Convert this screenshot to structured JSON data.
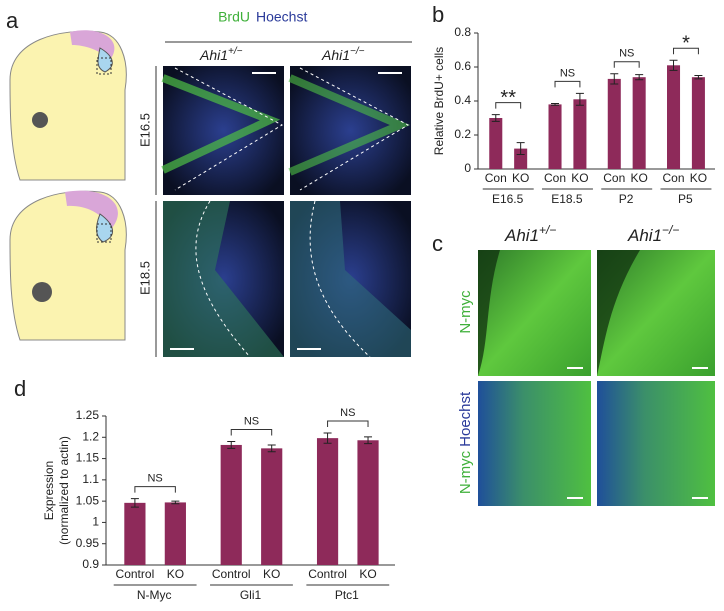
{
  "panels": {
    "a": {
      "letter": "a",
      "stain_1": "BrdU",
      "stain_2": "Hoechst",
      "gene": "Ahi1",
      "col_1": "+/−",
      "col_2": "−/−",
      "row_1": "E16.5",
      "row_2": "E18.5"
    },
    "c": {
      "letter": "c",
      "gene": "Ahi1",
      "col_1": "+/−",
      "col_2": "−/−",
      "row_1": "N-myc",
      "row_2_a": "N-myc",
      "row_2_b": "Hoechst"
    },
    "b": {
      "letter": "b"
    },
    "d": {
      "letter": "d"
    }
  },
  "chart_data": [
    {
      "type": "bar",
      "ylabel": "Relative BrdU+ cells",
      "categories": [
        "Con",
        "KO",
        "Con",
        "KO",
        "Con",
        "KO",
        "Con",
        "KO"
      ],
      "groups": [
        "E16.5",
        "E18.5",
        "P2",
        "P5"
      ],
      "significance": [
        "**",
        "NS",
        "NS",
        "*"
      ],
      "values": [
        0.3,
        0.12,
        0.38,
        0.41,
        0.53,
        0.54,
        0.61,
        0.54
      ],
      "errors": [
        0.02,
        0.035,
        0.005,
        0.035,
        0.03,
        0.015,
        0.03,
        0.01
      ],
      "color": "#8e2a5a",
      "ylim": [
        0,
        0.8
      ],
      "yticks": [
        0,
        0.2,
        0.4,
        0.6,
        0.8
      ]
    },
    {
      "type": "bar",
      "ylabel": [
        "Expression",
        "(normalized to actin)"
      ],
      "categories": [
        "Control",
        "KO",
        "Control",
        "KO",
        "Control",
        "KO"
      ],
      "groups": [
        "N-Myc",
        "Gli1",
        "Ptc1"
      ],
      "significance": [
        "NS",
        "NS",
        "NS"
      ],
      "values": [
        1.046,
        1.047,
        1.182,
        1.174,
        1.198,
        1.193
      ],
      "errors": [
        0.01,
        0.003,
        0.008,
        0.008,
        0.012,
        0.008
      ],
      "color": "#8e2a5a",
      "ylim": [
        0.9,
        1.25
      ],
      "yticks": [
        0.9,
        0.95,
        1,
        1.05,
        1.1,
        1.15,
        1.2,
        1.25
      ]
    }
  ]
}
